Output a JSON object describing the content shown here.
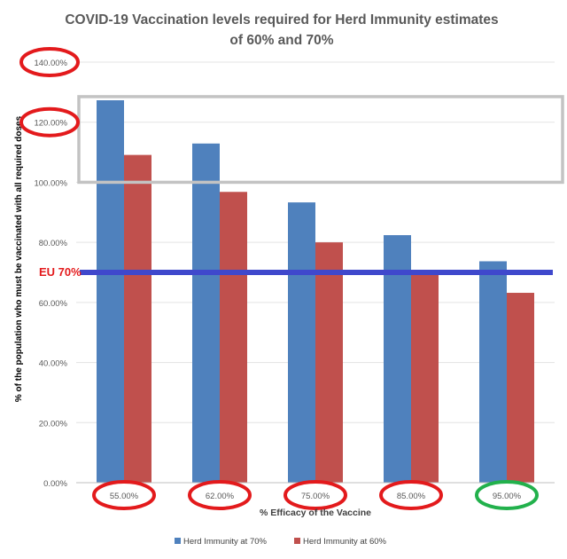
{
  "chart_data": {
    "type": "bar",
    "title_line1": "COVID-19 Vaccination levels required for Herd Immunity estimates",
    "title_line2": "of 60% and 70%",
    "xlabel": "% Efficacy of the Vaccine",
    "ylabel": "% of the population who must be vaccinated with all required doses",
    "categories": [
      "55.00%",
      "62.00%",
      "75.00%",
      "85.00%",
      "95.00%"
    ],
    "ylim": [
      0,
      140
    ],
    "yticks": [
      "0.00%",
      "20.00%",
      "40.00%",
      "60.00%",
      "80.00%",
      "100.00%",
      "120.00%",
      "140.00%"
    ],
    "grid": true,
    "legend_position": "bottom",
    "series": [
      {
        "name": "Herd Immunity at 70%",
        "color": "#4f81bd",
        "values": [
          127.3,
          112.9,
          93.3,
          82.4,
          73.7
        ]
      },
      {
        "name": "Herd Immunity at 60%",
        "color": "#c0504d",
        "values": [
          109.1,
          96.8,
          80.0,
          70.6,
          63.2
        ]
      }
    ],
    "annotations": {
      "reference_line": {
        "label": "EU 70%",
        "value": 70,
        "color": "#3f48cc",
        "label_color": "#e31a1c"
      },
      "highlight_box": {
        "from": 100,
        "to": 128.5,
        "color": "#c3c3c3"
      },
      "circled_y_ticks": [
        "120.00%",
        "140.00%"
      ],
      "circle_red": "#e31a1c",
      "circle_green": "#22b14c",
      "circled_x_ticks_green": [
        "95.00%"
      ]
    }
  }
}
